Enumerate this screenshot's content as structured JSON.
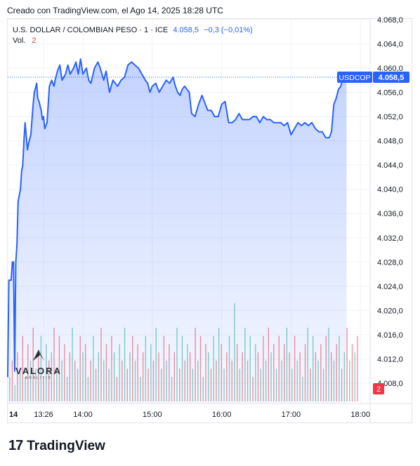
{
  "header": {
    "created_text": "Creado con TradingView.com, el Ago 14, 2025 18:28 UTC"
  },
  "legend": {
    "symbol_text": "U.S. DOLLAR / COLOMBIAN PESO · 1 · ICE",
    "price": "4.058,5",
    "change": "−0,3 (−0,01%)",
    "vol_label": "Vol.",
    "vol_value": "2"
  },
  "watermark": {
    "text": "VALORA",
    "subtext": "ANALITIK"
  },
  "footer": {
    "brand": "TradingView",
    "mark": "17"
  },
  "colors": {
    "line": "#2962ff",
    "fill": "#2962ff",
    "vol_up": "#22ab94",
    "vol_down": "#f23645",
    "grid": "#f0f3fa",
    "axis_text": "#131722"
  },
  "chart_data": {
    "type": "area",
    "title": "U.S. DOLLAR / COLOMBIAN PESO · 1 · ICE",
    "xlabel": "",
    "ylabel": "",
    "ylim": [
      4004,
      4070
    ],
    "yticks": [
      4008,
      4012,
      4016,
      4020,
      4024,
      4028,
      4032,
      4036,
      4040,
      4044,
      4048,
      4052,
      4056,
      4060,
      4064,
      4068
    ],
    "ytick_labels": [
      "4.008,0",
      "4.012,0",
      "4.016,0",
      "4.020,0",
      "4.024,0",
      "4.028,0",
      "4.032,0",
      "4.036,0",
      "4.040,0",
      "4.044,0",
      "4.048,0",
      "4.052,0",
      "4.056,0",
      "4.060,0",
      "4.064,0",
      "4.068,0"
    ],
    "xticks": [
      {
        "t": "12:55",
        "label": "14"
      },
      {
        "t": "13:26",
        "label": "13:26"
      },
      {
        "t": "14:00",
        "label": "14:00"
      },
      {
        "t": "15:00",
        "label": "15:00"
      },
      {
        "t": "16:00",
        "label": "16:00"
      },
      {
        "t": "17:00",
        "label": "17:00"
      },
      {
        "t": "18:00",
        "label": "18:00"
      }
    ],
    "last_price": 4058.5,
    "last_price_label": "4.058,5",
    "symbol_tag": "USDCOP",
    "volume_tag": "2",
    "grid": true,
    "series": [
      {
        "name": "USDCOP",
        "points": [
          [
            "12:55",
            4009.0
          ],
          [
            "12:56",
            4025.0
          ],
          [
            "12:58",
            4025.0
          ],
          [
            "12:59",
            4028.0
          ],
          [
            "13:00",
            4028.0
          ],
          [
            "13:01",
            4010.0
          ],
          [
            "13:02",
            4028.0
          ],
          [
            "13:03",
            4031.0
          ],
          [
            "13:04",
            4038.0
          ],
          [
            "13:06",
            4040.0
          ],
          [
            "13:07",
            4043.0
          ],
          [
            "13:08",
            4044.0
          ],
          [
            "13:09",
            4048.0
          ],
          [
            "13:10",
            4051.0
          ],
          [
            "13:11",
            4049.0
          ],
          [
            "13:12",
            4046.5
          ],
          [
            "13:13",
            4047.5
          ],
          [
            "13:15",
            4049.0
          ],
          [
            "13:17",
            4054.0
          ],
          [
            "13:18",
            4056.0
          ],
          [
            "13:20",
            4057.5
          ],
          [
            "13:21",
            4055.0
          ],
          [
            "13:22",
            4054.5
          ],
          [
            "13:24",
            4053.0
          ],
          [
            "13:25",
            4051.5
          ],
          [
            "13:26",
            4052.0
          ],
          [
            "13:27",
            4050.0
          ],
          [
            "13:29",
            4051.0
          ],
          [
            "13:31",
            4057.0
          ],
          [
            "13:33",
            4058.0
          ],
          [
            "13:35",
            4057.0
          ],
          [
            "13:36",
            4058.0
          ],
          [
            "13:38",
            4059.5
          ],
          [
            "13:40",
            4060.5
          ],
          [
            "13:42",
            4058.0
          ],
          [
            "13:45",
            4059.0
          ],
          [
            "13:47",
            4060.5
          ],
          [
            "13:49",
            4059.0
          ],
          [
            "13:52",
            4060.0
          ],
          [
            "13:54",
            4061.0
          ],
          [
            "13:56",
            4059.0
          ],
          [
            "13:58",
            4061.5
          ],
          [
            "14:00",
            4059.0
          ],
          [
            "14:03",
            4060.0
          ],
          [
            "14:05",
            4058.0
          ],
          [
            "14:07",
            4057.5
          ],
          [
            "14:10",
            4060.0
          ],
          [
            "14:13",
            4061.0
          ],
          [
            "14:15",
            4060.0
          ],
          [
            "14:18",
            4058.0
          ],
          [
            "14:20",
            4059.5
          ],
          [
            "14:23",
            4056.0
          ],
          [
            "14:26",
            4058.0
          ],
          [
            "14:30",
            4057.0
          ],
          [
            "14:33",
            4058.0
          ],
          [
            "14:36",
            4058.5
          ],
          [
            "14:39",
            4060.5
          ],
          [
            "14:42",
            4061.0
          ],
          [
            "14:45",
            4060.5
          ],
          [
            "14:48",
            4060.0
          ],
          [
            "14:51",
            4059.0
          ],
          [
            "14:54",
            4058.0
          ],
          [
            "14:56",
            4057.5
          ],
          [
            "14:58",
            4056.0
          ],
          [
            "15:00",
            4057.0
          ],
          [
            "15:03",
            4057.5
          ],
          [
            "15:06",
            4056.0
          ],
          [
            "15:09",
            4057.0
          ],
          [
            "15:12",
            4058.0
          ],
          [
            "15:15",
            4057.5
          ],
          [
            "15:18",
            4058.5
          ],
          [
            "15:20",
            4057.0
          ],
          [
            "15:22",
            4056.0
          ],
          [
            "15:24",
            4055.5
          ],
          [
            "15:26",
            4056.5
          ],
          [
            "15:28",
            4057.0
          ],
          [
            "15:30",
            4056.5
          ],
          [
            "15:32",
            4056.0
          ],
          [
            "15:34",
            4052.5
          ],
          [
            "15:37",
            4052.0
          ],
          [
            "15:40",
            4054.0
          ],
          [
            "15:43",
            4055.5
          ],
          [
            "15:46",
            4054.0
          ],
          [
            "15:48",
            4053.0
          ],
          [
            "15:51",
            4053.0
          ],
          [
            "15:54",
            4052.0
          ],
          [
            "15:57",
            4052.0
          ],
          [
            "16:00",
            4054.0
          ],
          [
            "16:03",
            4054.5
          ],
          [
            "16:06",
            4051.0
          ],
          [
            "16:09",
            4051.0
          ],
          [
            "16:12",
            4051.5
          ],
          [
            "16:15",
            4052.5
          ],
          [
            "16:18",
            4051.5
          ],
          [
            "16:21",
            4051.5
          ],
          [
            "16:24",
            4051.5
          ],
          [
            "16:27",
            4052.0
          ],
          [
            "16:30",
            4052.0
          ],
          [
            "16:33",
            4051.0
          ],
          [
            "16:36",
            4052.0
          ],
          [
            "16:39",
            4051.5
          ],
          [
            "16:42",
            4051.5
          ],
          [
            "16:45",
            4051.0
          ],
          [
            "16:48",
            4051.0
          ],
          [
            "16:51",
            4051.0
          ],
          [
            "16:54",
            4050.5
          ],
          [
            "16:57",
            4051.0
          ],
          [
            "17:00",
            4049.0
          ],
          [
            "17:03",
            4050.0
          ],
          [
            "17:06",
            4051.0
          ],
          [
            "17:09",
            4050.5
          ],
          [
            "17:12",
            4051.0
          ],
          [
            "17:15",
            4050.5
          ],
          [
            "17:18",
            4051.0
          ],
          [
            "17:21",
            4050.0
          ],
          [
            "17:24",
            4049.5
          ],
          [
            "17:27",
            4049.5
          ],
          [
            "17:30",
            4048.5
          ],
          [
            "17:33",
            4048.5
          ],
          [
            "17:35",
            4049.5
          ],
          [
            "17:37",
            4054.0
          ],
          [
            "17:39",
            4055.0
          ],
          [
            "17:41",
            4056.5
          ],
          [
            "17:43",
            4057.0
          ],
          [
            "17:45",
            4058.5
          ],
          [
            "17:47",
            4058.0
          ],
          [
            "17:48",
            4058.5
          ]
        ]
      }
    ],
    "volume": {
      "max": 12,
      "bars": [
        3,
        5,
        2,
        6,
        4,
        8,
        3,
        7,
        5,
        9,
        4,
        6,
        8,
        3,
        7,
        5,
        6,
        9,
        4,
        8,
        5,
        7,
        3,
        6,
        9,
        5,
        4,
        8,
        6,
        7,
        3,
        5,
        8,
        4,
        6,
        9,
        5,
        7,
        4,
        8,
        6,
        3,
        7,
        5,
        9,
        4,
        6,
        8,
        5,
        7,
        3,
        6,
        8,
        4,
        7,
        5,
        9,
        6,
        4,
        8,
        5,
        7,
        3,
        6,
        9,
        4,
        8,
        5,
        7,
        6,
        4,
        9,
        5,
        8,
        3,
        7,
        6,
        4,
        8,
        5,
        9,
        7,
        4,
        6,
        8,
        5,
        12,
        7,
        4,
        6,
        9,
        5,
        8,
        3,
        7,
        6,
        4,
        8,
        5,
        9,
        6,
        7,
        4,
        8,
        5,
        7,
        9,
        6,
        4,
        8,
        5,
        6,
        3,
        7,
        9,
        4,
        8,
        6,
        5,
        7,
        4,
        8,
        9,
        6,
        5,
        7,
        8,
        4,
        6,
        9,
        5,
        7,
        6,
        8
      ]
    }
  }
}
